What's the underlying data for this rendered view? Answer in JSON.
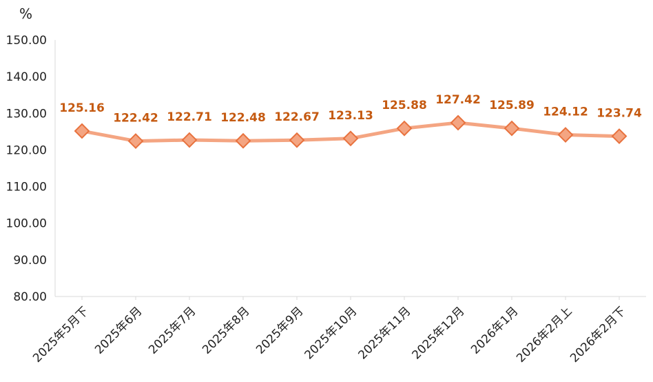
{
  "chart_data": {
    "type": "line",
    "ylabel": "%",
    "categories": [
      "2025年5月下",
      "2025年6月",
      "2025年7月",
      "2025年8月",
      "2025年9月",
      "2025年10月",
      "2025年11月",
      "2025年12月",
      "2026年1月",
      "2026年2月上",
      "2026年2月下"
    ],
    "series": [
      {
        "values": [
          125.16,
          122.42,
          122.71,
          122.48,
          122.67,
          123.13,
          125.88,
          127.42,
          125.89,
          124.12,
          123.74
        ]
      }
    ],
    "data_labels": [
      "125.16",
      "122.42",
      "122.71",
      "122.48",
      "122.67",
      "123.13",
      "125.88",
      "127.42",
      "125.89",
      "124.12",
      "123.74"
    ],
    "ylim": [
      80,
      150
    ],
    "yticks": [
      "80.00",
      "90.00",
      "100.00",
      "110.00",
      "120.00",
      "130.00",
      "140.00",
      "150.00"
    ],
    "grid": false,
    "legend": "none",
    "colors": {
      "line": "#f4a582",
      "marker_fill": "#f4a582",
      "marker_stroke": "#e8723e",
      "data_label": "#c55a11",
      "axis": "#d9d9d9",
      "tick_label": "#222222"
    }
  }
}
